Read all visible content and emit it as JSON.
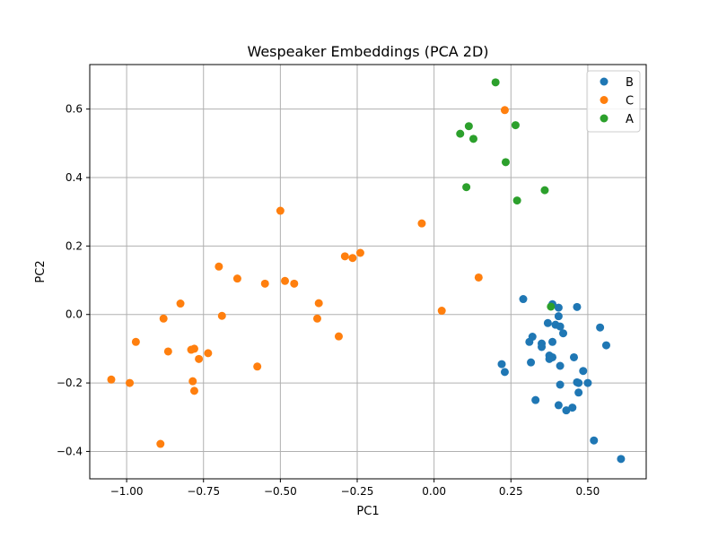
{
  "chart_data": {
    "type": "scatter",
    "title": "Wespeaker Embeddings (PCA 2D)",
    "xlabel": "PC1",
    "ylabel": "PC2",
    "xlim": [
      -1.12,
      0.69
    ],
    "ylim": [
      -0.48,
      0.73
    ],
    "xticks": [
      -1.0,
      -0.75,
      -0.5,
      -0.25,
      0.0,
      0.25,
      0.5
    ],
    "xtick_labels": [
      "−1.00",
      "−0.75",
      "−0.50",
      "−0.25",
      "0.00",
      "0.25",
      "0.50"
    ],
    "yticks": [
      -0.4,
      -0.2,
      0.0,
      0.2,
      0.4,
      0.6
    ],
    "ytick_labels": [
      "−0.4",
      "−0.2",
      "0.0",
      "0.2",
      "0.4",
      "0.6"
    ],
    "grid": true,
    "legend_position": "top-right",
    "series": [
      {
        "name": "B",
        "color": "#1f77b4",
        "points": [
          [
            0.29,
            0.045
          ],
          [
            0.385,
            0.03
          ],
          [
            0.465,
            0.022
          ],
          [
            0.405,
            0.02
          ],
          [
            0.405,
            -0.005
          ],
          [
            0.37,
            -0.025
          ],
          [
            0.395,
            -0.03
          ],
          [
            0.41,
            -0.035
          ],
          [
            0.42,
            -0.055
          ],
          [
            0.54,
            -0.038
          ],
          [
            0.32,
            -0.065
          ],
          [
            0.31,
            -0.08
          ],
          [
            0.385,
            -0.08
          ],
          [
            0.35,
            -0.085
          ],
          [
            0.35,
            -0.095
          ],
          [
            0.56,
            -0.09
          ],
          [
            0.375,
            -0.12
          ],
          [
            0.385,
            -0.125
          ],
          [
            0.375,
            -0.13
          ],
          [
            0.455,
            -0.125
          ],
          [
            0.315,
            -0.14
          ],
          [
            0.22,
            -0.145
          ],
          [
            0.41,
            -0.15
          ],
          [
            0.23,
            -0.168
          ],
          [
            0.485,
            -0.165
          ],
          [
            0.465,
            -0.198
          ],
          [
            0.47,
            -0.2
          ],
          [
            0.5,
            -0.2
          ],
          [
            0.41,
            -0.205
          ],
          [
            0.47,
            -0.228
          ],
          [
            0.33,
            -0.25
          ],
          [
            0.405,
            -0.265
          ],
          [
            0.43,
            -0.28
          ],
          [
            0.45,
            -0.272
          ],
          [
            0.52,
            -0.368
          ],
          [
            0.608,
            -0.422
          ]
        ]
      },
      {
        "name": "C",
        "color": "#ff7f0e",
        "points": [
          [
            0.23,
            0.597
          ],
          [
            -0.5,
            0.303
          ],
          [
            -0.04,
            0.266
          ],
          [
            -0.24,
            0.18
          ],
          [
            -0.29,
            0.17
          ],
          [
            -0.265,
            0.165
          ],
          [
            0.145,
            0.108
          ],
          [
            -0.7,
            0.14
          ],
          [
            -0.64,
            0.105
          ],
          [
            -0.485,
            0.098
          ],
          [
            -0.55,
            0.09
          ],
          [
            -0.455,
            0.09
          ],
          [
            -0.375,
            0.033
          ],
          [
            -0.825,
            0.032
          ],
          [
            0.025,
            0.011
          ],
          [
            -0.69,
            -0.004
          ],
          [
            -0.88,
            -0.012
          ],
          [
            -0.38,
            -0.012
          ],
          [
            -0.31,
            -0.064
          ],
          [
            -0.97,
            -0.08
          ],
          [
            -0.865,
            -0.108
          ],
          [
            -0.78,
            -0.1
          ],
          [
            -0.79,
            -0.103
          ],
          [
            -0.735,
            -0.113
          ],
          [
            -0.765,
            -0.13
          ],
          [
            -0.575,
            -0.152
          ],
          [
            -1.05,
            -0.19
          ],
          [
            -0.99,
            -0.2
          ],
          [
            -0.785,
            -0.195
          ],
          [
            -0.78,
            -0.223
          ],
          [
            -0.89,
            -0.378
          ]
        ]
      },
      {
        "name": "A",
        "color": "#2ca02c",
        "points": [
          [
            0.2,
            0.678
          ],
          [
            0.265,
            0.553
          ],
          [
            0.113,
            0.55
          ],
          [
            0.085,
            0.528
          ],
          [
            0.128,
            0.513
          ],
          [
            0.233,
            0.445
          ],
          [
            0.105,
            0.372
          ],
          [
            0.36,
            0.363
          ],
          [
            0.27,
            0.333
          ],
          [
            0.38,
            0.023
          ]
        ]
      }
    ]
  }
}
